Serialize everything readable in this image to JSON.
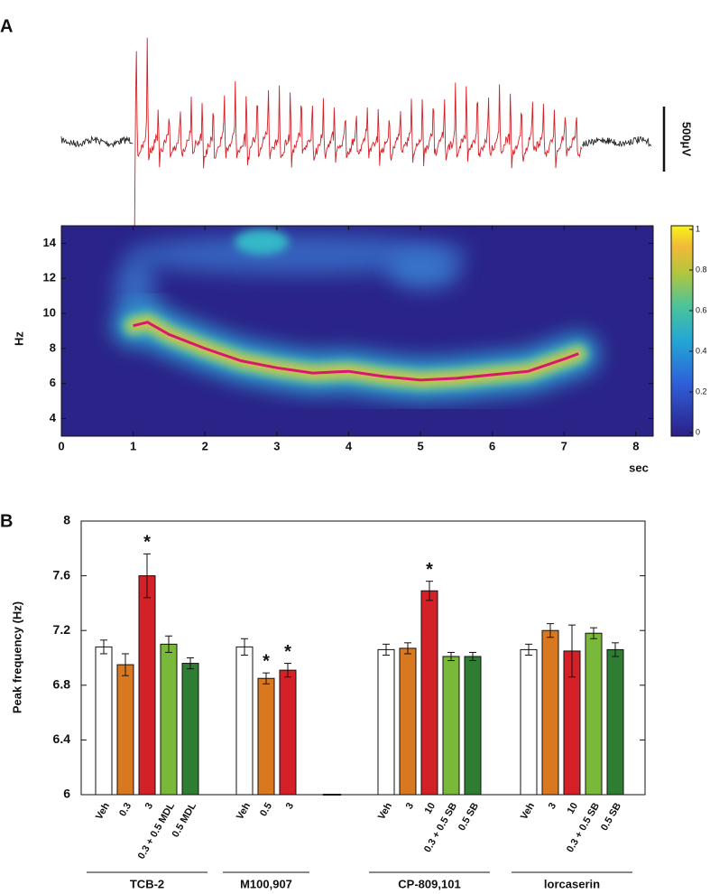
{
  "chart_data": [
    {
      "type": "spectrogram",
      "panel_label": "A",
      "scale_bar_label": "500μV",
      "xlabel": "sec",
      "ylabel": "Hz",
      "xlim": [
        0,
        8.24
      ],
      "xticks": [
        0,
        1,
        2,
        3,
        4,
        5,
        6,
        7,
        8
      ],
      "ylim": [
        3,
        15
      ],
      "yticks": [
        4,
        6,
        8,
        10,
        12,
        14
      ],
      "x": [
        1.0,
        1.2,
        1.5,
        2.0,
        2.5,
        3.0,
        3.5,
        4.0,
        4.5,
        5.0,
        5.5,
        6.0,
        6.5,
        7.0,
        7.2
      ],
      "values": [
        9.3,
        9.5,
        8.8,
        8.0,
        7.3,
        6.9,
        6.6,
        6.7,
        6.4,
        6.2,
        6.3,
        6.5,
        6.7,
        7.4,
        7.7
      ],
      "color": "#d6186e",
      "colorbar_lim": [
        0,
        1
      ],
      "colorbar_ticks": [
        0,
        0.2,
        0.4,
        0.6,
        0.8,
        1
      ]
    },
    {
      "type": "grouped_bar",
      "panel_label": "B",
      "ylabel": "Peak frequency (Hz)",
      "ylim": [
        6,
        8
      ],
      "yticks": [
        6,
        6.4,
        6.8,
        7.2,
        7.6,
        8
      ],
      "groups": [
        {
          "name": "TCB-2",
          "categories": [
            "Veh",
            "0.3",
            "3",
            "0.3 + 0.5 MDL",
            "0.5 MDL"
          ],
          "values": [
            7.08,
            6.95,
            7.6,
            7.1,
            6.96
          ],
          "errors": [
            0.05,
            0.08,
            0.16,
            0.06,
            0.04
          ],
          "colors": [
            "#ffffff",
            "#d9781f",
            "#d42027",
            "#7ab83c",
            "#2e7d32"
          ],
          "annotations": [
            {
              "index": 2,
              "text": "*"
            }
          ]
        },
        {
          "name": "M100,907",
          "categories": [
            "Veh",
            "0.5",
            "3"
          ],
          "values": [
            7.08,
            6.85,
            6.91
          ],
          "errors": [
            0.06,
            0.04,
            0.05
          ],
          "colors": [
            "#ffffff",
            "#d9781f",
            "#d42027"
          ],
          "annotations": [
            {
              "index": 1,
              "text": "*"
            },
            {
              "index": 2,
              "text": "*"
            }
          ]
        },
        {
          "name": "CP-809,101",
          "categories": [
            "Veh",
            "3",
            "10",
            "0.3 + 0.5 SB",
            "0.5 SB"
          ],
          "values": [
            7.06,
            7.07,
            7.49,
            7.01,
            7.01
          ],
          "errors": [
            0.04,
            0.04,
            0.07,
            0.03,
            0.03
          ],
          "colors": [
            "#ffffff",
            "#d9781f",
            "#d42027",
            "#7ab83c",
            "#2e7d32"
          ],
          "annotations": [
            {
              "index": 2,
              "text": "*"
            }
          ]
        },
        {
          "name": "lorcaserin",
          "categories": [
            "Veh",
            "3",
            "10",
            "0.3 + 0.5 SB",
            "0.5 SB"
          ],
          "values": [
            7.06,
            7.2,
            7.05,
            7.18,
            7.06
          ],
          "errors": [
            0.04,
            0.05,
            0.19,
            0.04,
            0.05
          ],
          "colors": [
            "#ffffff",
            "#d9781f",
            "#d42027",
            "#7ab83c",
            "#2e7d32"
          ],
          "annotations": []
        }
      ]
    }
  ]
}
